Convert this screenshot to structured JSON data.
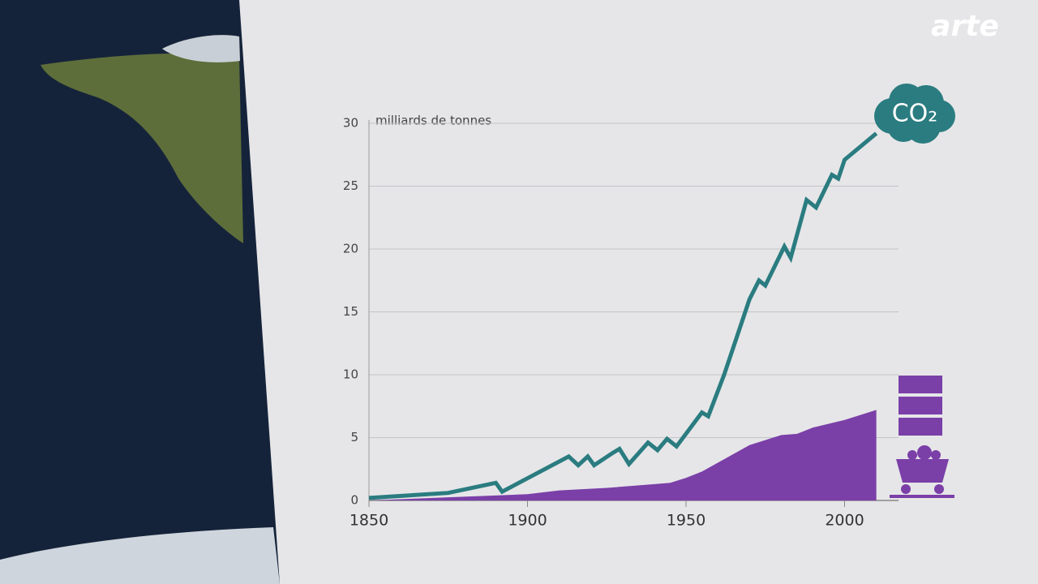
{
  "logo": "arte",
  "chart_data": {
    "type": "line",
    "y_axis_label": "milliards de tonnes",
    "xlim": [
      1850,
      2017
    ],
    "xticks": [
      1850,
      1900,
      1950,
      2000
    ],
    "ylim": [
      0,
      30
    ],
    "yticks": [
      0,
      5,
      10,
      15,
      20,
      25,
      30
    ],
    "grid": true,
    "series": [
      {
        "kind": "area",
        "color": "#7b3fa8",
        "x": [
          1850,
          1900,
          1910,
          1925,
          1940,
          1945,
          1950,
          1955,
          1960,
          1970,
          1980,
          1985,
          1990,
          2000,
          2010
        ],
        "values": [
          0,
          0.5,
          0.8,
          1.0,
          1.3,
          1.4,
          1.8,
          2.3,
          3.0,
          4.4,
          5.2,
          5.3,
          5.8,
          6.4,
          7.2
        ]
      },
      {
        "kind": "line",
        "name": "CO₂",
        "color": "#2a7c80",
        "x": [
          1850,
          1875,
          1890,
          1892,
          1913,
          1916,
          1919,
          1921,
          1927,
          1929,
          1932,
          1938,
          1941,
          1944,
          1947,
          1955,
          1957,
          1962,
          1970,
          1973,
          1975,
          1981,
          1983,
          1988,
          1991,
          1996,
          1998,
          2000,
          2010
        ],
        "values": [
          0.2,
          0.6,
          1.4,
          0.7,
          3.5,
          2.8,
          3.5,
          2.8,
          3.8,
          4.1,
          2.9,
          4.6,
          4.0,
          4.9,
          4.3,
          7.0,
          6.7,
          10,
          16,
          17.5,
          17.1,
          20.2,
          19.3,
          23.9,
          23.3,
          25.9,
          25.6,
          27.1,
          29.2
        ]
      }
    ]
  }
}
